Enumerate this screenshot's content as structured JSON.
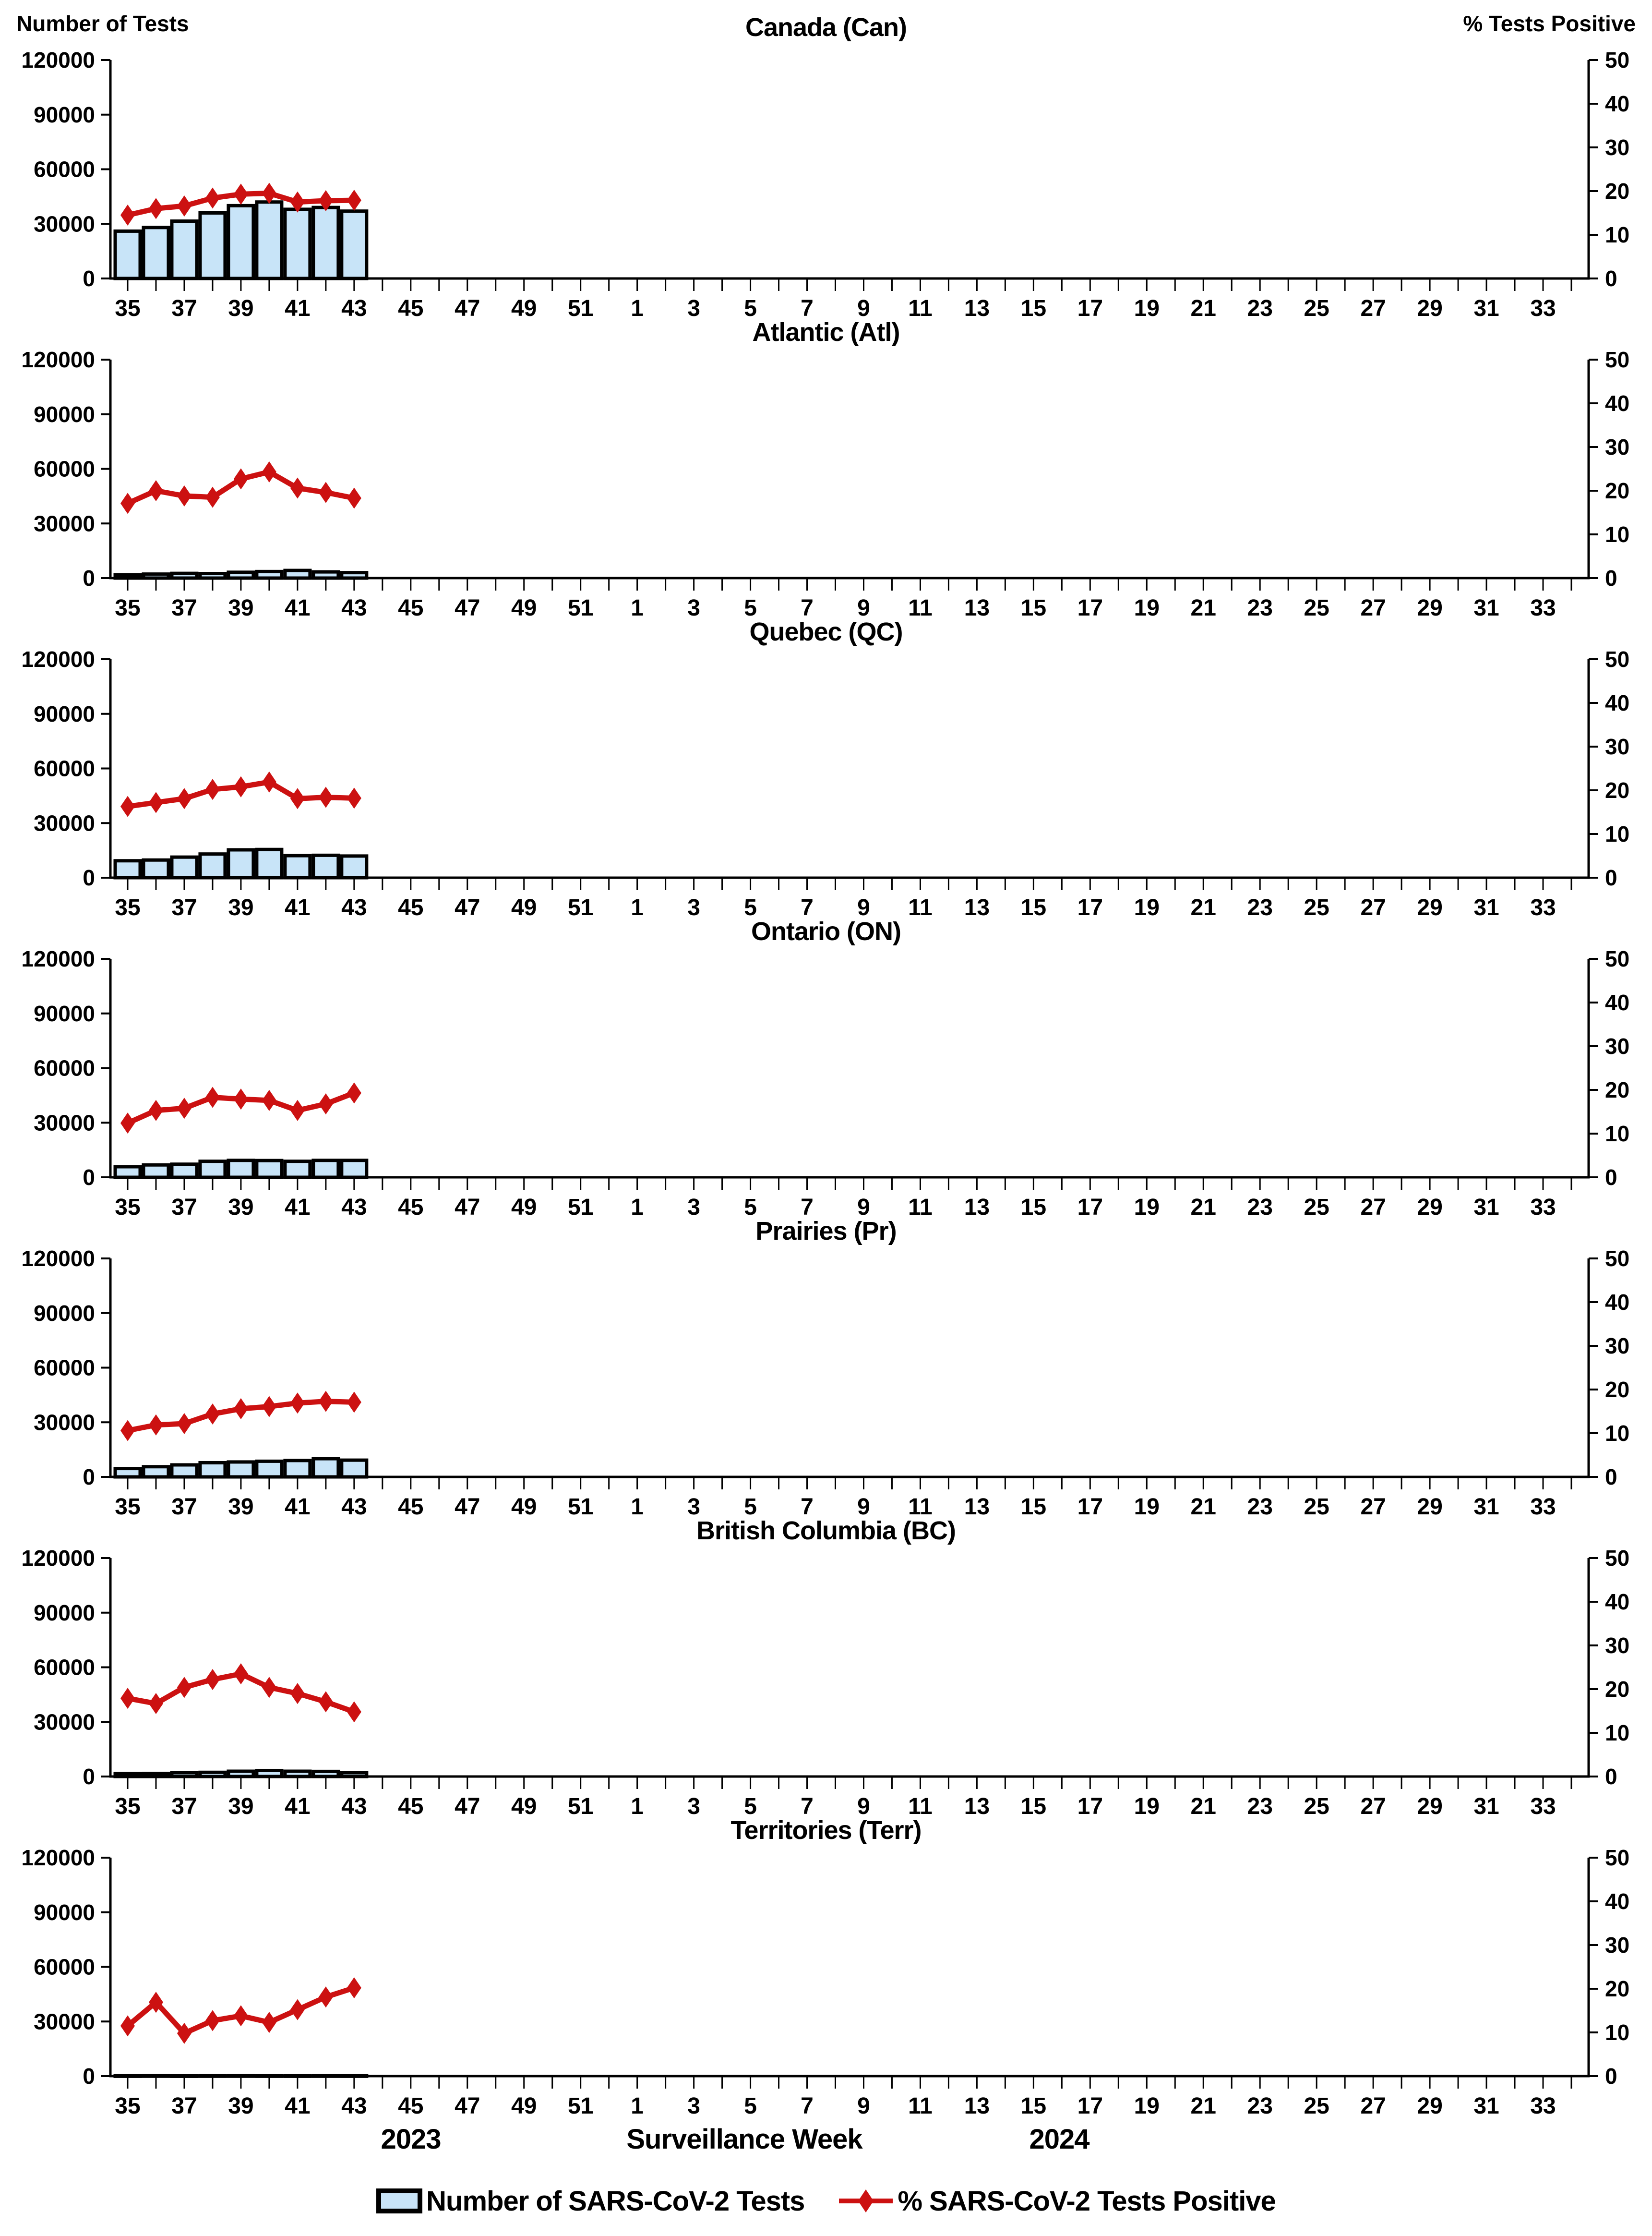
{
  "header": {
    "left_axis_title": "Number of Tests",
    "right_axis_title": "% Tests Positive"
  },
  "x_axis": {
    "year_left": "2023",
    "title": "Surveillance Week",
    "year_right": "2024"
  },
  "legend": {
    "tests_label": "Number of SARS-CoV-2 Tests",
    "positivity_label": "% SARS-CoV-2 Tests Positive"
  },
  "colors": {
    "bar_fill": "#C8E4F8",
    "bar_stroke": "#000000",
    "line": "#CC1111",
    "axis": "#000000"
  },
  "axes": {
    "left_ticks": [
      0,
      30000,
      60000,
      90000,
      120000
    ],
    "left_max": 120000,
    "right_ticks": [
      0,
      10,
      20,
      30,
      40,
      50
    ],
    "right_max": 50,
    "x_slots": [
      35,
      36,
      37,
      38,
      39,
      40,
      41,
      42,
      43,
      44,
      45,
      46,
      47,
      48,
      49,
      50,
      51,
      52,
      1,
      2,
      3,
      4,
      5,
      6,
      7,
      8,
      9,
      10,
      11,
      12,
      13,
      14,
      15,
      16,
      17,
      18,
      19,
      20,
      21,
      22,
      23,
      24,
      25,
      26,
      27,
      28,
      29,
      30,
      31,
      32,
      33,
      34
    ],
    "x_tick_labels": [
      "35",
      "37",
      "39",
      "41",
      "43",
      "45",
      "47",
      "49",
      "51",
      "1",
      "3",
      "5",
      "7",
      "9",
      "11",
      "13",
      "15",
      "17",
      "19",
      "21",
      "23",
      "25",
      "27",
      "29",
      "31",
      "33"
    ]
  },
  "chart_data": [
    {
      "type": "bar+line",
      "title": "Canada (Can)",
      "categories": [
        35,
        36,
        37,
        38,
        39,
        40,
        41,
        42,
        43
      ],
      "series": [
        {
          "name": "Number of SARS-CoV-2 Tests",
          "axis": "left",
          "values": [
            26000,
            28000,
            31500,
            36000,
            40000,
            42000,
            38000,
            39000,
            37000
          ]
        },
        {
          "name": "% SARS-CoV-2 Tests Positive",
          "axis": "right",
          "values": [
            14.5,
            16.0,
            16.6,
            18.4,
            19.3,
            19.5,
            17.5,
            17.8,
            17.9
          ]
        }
      ],
      "ylim_left": [
        0,
        120000
      ],
      "ylim_right": [
        0,
        50
      ]
    },
    {
      "type": "bar+line",
      "title": "Atlantic (Atl)",
      "categories": [
        35,
        36,
        37,
        38,
        39,
        40,
        41,
        42,
        43
      ],
      "series": [
        {
          "name": "Number of SARS-CoV-2 Tests",
          "axis": "left",
          "values": [
            1800,
            2200,
            2600,
            2500,
            3200,
            3600,
            4200,
            3400,
            3000
          ]
        },
        {
          "name": "% SARS-CoV-2 Tests Positive",
          "axis": "right",
          "values": [
            17.1,
            20.0,
            18.8,
            18.5,
            22.7,
            24.3,
            20.6,
            19.6,
            18.3
          ]
        }
      ],
      "ylim_left": [
        0,
        120000
      ],
      "ylim_right": [
        0,
        50
      ]
    },
    {
      "type": "bar+line",
      "title": "Quebec (QC)",
      "categories": [
        35,
        36,
        37,
        38,
        39,
        40,
        41,
        42,
        43
      ],
      "series": [
        {
          "name": "Number of SARS-CoV-2 Tests",
          "axis": "left",
          "values": [
            9300,
            9700,
            11300,
            13000,
            15300,
            15500,
            12100,
            12300,
            11900
          ]
        },
        {
          "name": "% SARS-CoV-2 Tests Positive",
          "axis": "right",
          "values": [
            16.3,
            17.2,
            18.1,
            20.2,
            20.8,
            21.9,
            18.1,
            18.4,
            18.2
          ]
        }
      ],
      "ylim_left": [
        0,
        120000
      ],
      "ylim_right": [
        0,
        50
      ]
    },
    {
      "type": "bar+line",
      "title": "Ontario (ON)",
      "categories": [
        35,
        36,
        37,
        38,
        39,
        40,
        41,
        42,
        43
      ],
      "series": [
        {
          "name": "Number of SARS-CoV-2 Tests",
          "axis": "left",
          "values": [
            5800,
            6800,
            7200,
            8800,
            9300,
            9200,
            8800,
            9300,
            9300
          ]
        },
        {
          "name": "% SARS-CoV-2 Tests Positive",
          "axis": "right",
          "values": [
            12.4,
            15.3,
            15.8,
            18.3,
            17.9,
            17.6,
            15.3,
            16.8,
            19.3
          ]
        }
      ],
      "ylim_left": [
        0,
        120000
      ],
      "ylim_right": [
        0,
        50
      ]
    },
    {
      "type": "bar+line",
      "title": "Prairies (Pr)",
      "categories": [
        35,
        36,
        37,
        38,
        39,
        40,
        41,
        42,
        43
      ],
      "series": [
        {
          "name": "Number of SARS-CoV-2 Tests",
          "axis": "left",
          "values": [
            4600,
            5600,
            6600,
            7800,
            8200,
            8600,
            9000,
            10000,
            9200
          ]
        },
        {
          "name": "% SARS-CoV-2 Tests Positive",
          "axis": "right",
          "values": [
            10.6,
            11.9,
            12.2,
            14.4,
            15.6,
            16.1,
            16.9,
            17.3,
            17.1
          ]
        }
      ],
      "ylim_left": [
        0,
        120000
      ],
      "ylim_right": [
        0,
        50
      ]
    },
    {
      "type": "bar+line",
      "title": "British Columbia (BC)",
      "categories": [
        35,
        36,
        37,
        38,
        39,
        40,
        41,
        42,
        43
      ],
      "series": [
        {
          "name": "Number of SARS-CoV-2 Tests",
          "axis": "left",
          "values": [
            1600,
            1700,
            2100,
            2300,
            2900,
            3300,
            2900,
            2800,
            2100
          ]
        },
        {
          "name": "% SARS-CoV-2 Tests Positive",
          "axis": "right",
          "values": [
            17.9,
            16.7,
            20.4,
            22.2,
            23.5,
            20.4,
            19.0,
            17.1,
            14.8
          ]
        }
      ],
      "ylim_left": [
        0,
        120000
      ],
      "ylim_right": [
        0,
        50
      ]
    },
    {
      "type": "bar+line",
      "title": "Territories (Terr)",
      "categories": [
        35,
        36,
        37,
        38,
        39,
        40,
        41,
        42,
        43
      ],
      "series": [
        {
          "name": "Number of SARS-CoV-2 Tests",
          "axis": "left",
          "values": [
            150,
            180,
            140,
            170,
            180,
            160,
            150,
            170,
            160
          ]
        },
        {
          "name": "% SARS-CoV-2 Tests Positive",
          "axis": "right",
          "values": [
            11.5,
            16.9,
            9.8,
            12.7,
            13.8,
            12.3,
            15.2,
            18.1,
            20.2
          ]
        }
      ],
      "ylim_left": [
        0,
        120000
      ],
      "ylim_right": [
        0,
        50
      ]
    }
  ]
}
